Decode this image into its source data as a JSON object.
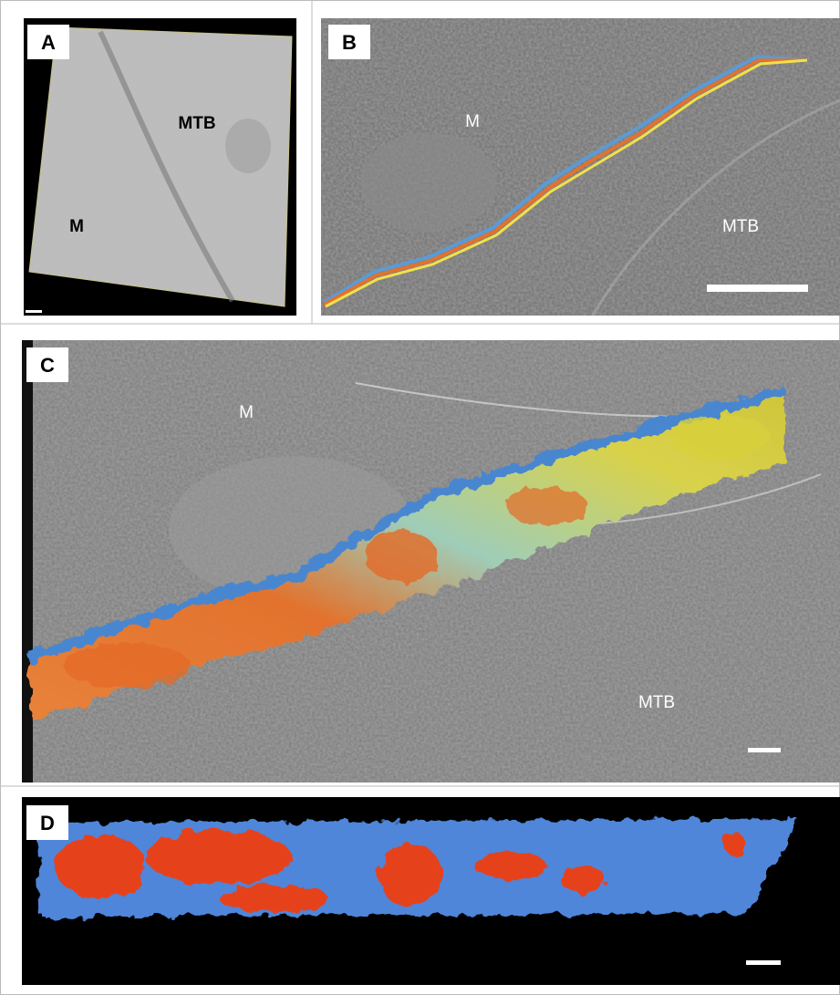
{
  "panels": [
    {
      "label": "A",
      "annotations": [
        "MTB",
        "M"
      ]
    },
    {
      "label": "B",
      "annotations": [
        "M",
        "MTB"
      ]
    },
    {
      "label": "C",
      "annotations": [
        "M",
        "MTB"
      ]
    },
    {
      "label": "D"
    }
  ]
}
